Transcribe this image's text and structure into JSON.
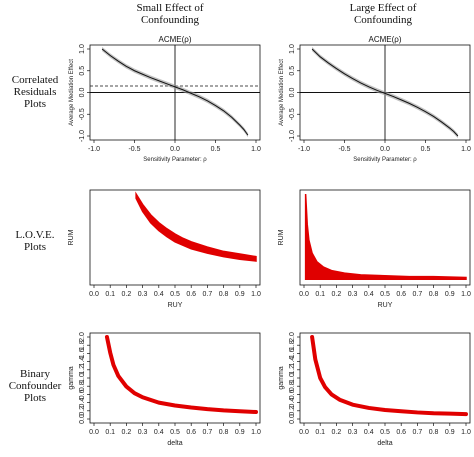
{
  "column_headers": [
    [
      "Small Effect of",
      "Confounding"
    ],
    [
      "Large Effect of",
      "Confounding"
    ]
  ],
  "row_headers": [
    [
      "Correlated",
      "Residuals",
      "Plots"
    ],
    [
      "L.O.V.E.",
      "Plots"
    ],
    [
      "Binary",
      "Confounder",
      "Plots"
    ]
  ],
  "chart_data": [
    {
      "id": "acme-small",
      "type": "line",
      "title": "ACME(ρ)",
      "xlabel": "Sensitivity Parameter: ρ",
      "ylabel": "Average Mediation Effect",
      "xlim": [
        -1,
        1
      ],
      "ylim": [
        -1,
        1
      ],
      "xticks": [
        "-1.0",
        "-0.5",
        "0.0",
        "0.5",
        "1.0"
      ],
      "yticks": [
        "-1.0",
        "-0.5",
        "0.0",
        "0.5",
        "1.0"
      ],
      "x": [
        -0.9,
        -0.8,
        -0.7,
        -0.6,
        -0.5,
        -0.4,
        -0.3,
        -0.2,
        -0.1,
        0,
        0.1,
        0.2,
        0.3,
        0.4,
        0.5,
        0.6,
        0.7,
        0.8,
        0.85,
        0.9
      ],
      "y": [
        1.0,
        0.85,
        0.72,
        0.6,
        0.5,
        0.42,
        0.34,
        0.27,
        0.2,
        0.13,
        0.06,
        -0.02,
        -0.1,
        -0.19,
        -0.3,
        -0.42,
        -0.57,
        -0.75,
        -0.85,
        -0.98
      ],
      "hline_dashed": 0.15,
      "hline_solid": 0
    },
    {
      "id": "acme-large",
      "type": "line",
      "title": "ACME(ρ)",
      "xlabel": "Sensitivity Parameter: ρ",
      "ylabel": "Average Mediation Effect",
      "xlim": [
        -1,
        1
      ],
      "ylim": [
        -1,
        1
      ],
      "xticks": [
        "-1.0",
        "-0.5",
        "0.0",
        "0.5",
        "1.0"
      ],
      "yticks": [
        "-1.0",
        "-0.5",
        "0.0",
        "0.5",
        "1.0"
      ],
      "x": [
        -0.9,
        -0.8,
        -0.7,
        -0.6,
        -0.5,
        -0.4,
        -0.3,
        -0.2,
        -0.1,
        0,
        0.1,
        0.2,
        0.3,
        0.4,
        0.5,
        0.6,
        0.7,
        0.8,
        0.85,
        0.9
      ],
      "y": [
        1.0,
        0.82,
        0.68,
        0.55,
        0.43,
        0.32,
        0.22,
        0.13,
        0.05,
        -0.02,
        -0.09,
        -0.17,
        -0.25,
        -0.34,
        -0.44,
        -0.55,
        -0.68,
        -0.82,
        -0.9,
        -1.0
      ],
      "hline_dashed": 0.0,
      "hline_solid": 0
    },
    {
      "id": "love-small",
      "type": "area",
      "xlabel": "RUY",
      "ylabel": "RUM",
      "xlim": [
        0,
        1
      ],
      "ylim": [
        0,
        1
      ],
      "xticks": [
        "0.0",
        "0.1",
        "0.2",
        "0.3",
        "0.4",
        "0.5",
        "0.6",
        "0.7",
        "0.8",
        "0.9",
        "1.0"
      ],
      "x": [
        0.26,
        0.3,
        0.35,
        0.4,
        0.45,
        0.5,
        0.55,
        0.6,
        0.7,
        0.8,
        0.9,
        1.0
      ],
      "upper": [
        1.0,
        0.88,
        0.76,
        0.67,
        0.6,
        0.54,
        0.49,
        0.45,
        0.39,
        0.34,
        0.31,
        0.28
      ],
      "lower": [
        0.95,
        0.8,
        0.67,
        0.58,
        0.51,
        0.45,
        0.41,
        0.37,
        0.32,
        0.28,
        0.25,
        0.23
      ]
    },
    {
      "id": "love-large",
      "type": "area",
      "xlabel": "RUY",
      "ylabel": "RUM",
      "xlim": [
        0,
        1
      ],
      "ylim": [
        0,
        1
      ],
      "xticks": [
        "0.0",
        "0.1",
        "0.2",
        "0.3",
        "0.4",
        "0.5",
        "0.6",
        "0.7",
        "0.8",
        "0.9",
        "1.0"
      ],
      "x": [
        0.01,
        0.02,
        0.03,
        0.05,
        0.08,
        0.12,
        0.17,
        0.25,
        0.35,
        0.5,
        0.65,
        0.8,
        1.0
      ],
      "upper": [
        1.0,
        0.65,
        0.47,
        0.32,
        0.22,
        0.16,
        0.12,
        0.09,
        0.07,
        0.06,
        0.05,
        0.05,
        0.04
      ],
      "lower": [
        0.02,
        0.02,
        0.02,
        0.02,
        0.02,
        0.02,
        0.02,
        0.02,
        0.02,
        0.02,
        0.02,
        0.02,
        0.02
      ]
    },
    {
      "id": "binary-small",
      "type": "line",
      "xlabel": "delta",
      "ylabel": "gamma",
      "xlim": [
        0,
        1
      ],
      "ylim": [
        0,
        2
      ],
      "xticks": [
        "0.0",
        "0.1",
        "0.2",
        "0.3",
        "0.4",
        "0.5",
        "0.6",
        "0.7",
        "0.8",
        "0.9",
        "1.0"
      ],
      "yticks": [
        "0.0",
        "0.2",
        "0.4",
        "0.6",
        "0.8",
        "1.0",
        "1.2",
        "1.4",
        "1.6",
        "1.8",
        "2.0"
      ],
      "x": [
        0.08,
        0.1,
        0.12,
        0.15,
        0.2,
        0.25,
        0.3,
        0.4,
        0.5,
        0.6,
        0.7,
        0.8,
        0.9,
        1.0
      ],
      "y": [
        2.0,
        1.62,
        1.32,
        1.05,
        0.79,
        0.63,
        0.53,
        0.4,
        0.33,
        0.28,
        0.24,
        0.21,
        0.19,
        0.17
      ]
    },
    {
      "id": "binary-large",
      "type": "line",
      "xlabel": "delta",
      "ylabel": "gamma",
      "xlim": [
        0,
        1
      ],
      "ylim": [
        0,
        2
      ],
      "xticks": [
        "0.0",
        "0.1",
        "0.2",
        "0.3",
        "0.4",
        "0.5",
        "0.6",
        "0.7",
        "0.8",
        "0.9",
        "1.0"
      ],
      "yticks": [
        "0.0",
        "0.2",
        "0.4",
        "0.6",
        "0.8",
        "1.0",
        "1.2",
        "1.4",
        "1.6",
        "1.8",
        "2.0"
      ],
      "x": [
        0.05,
        0.07,
        0.1,
        0.13,
        0.17,
        0.22,
        0.3,
        0.4,
        0.5,
        0.6,
        0.7,
        0.8,
        0.9,
        1.0
      ],
      "y": [
        2.0,
        1.45,
        1.0,
        0.78,
        0.6,
        0.47,
        0.35,
        0.27,
        0.22,
        0.19,
        0.16,
        0.14,
        0.13,
        0.12
      ]
    }
  ],
  "colors": {
    "curve": "#e00000",
    "band": "#9a9a9a",
    "ink": "#111111"
  }
}
